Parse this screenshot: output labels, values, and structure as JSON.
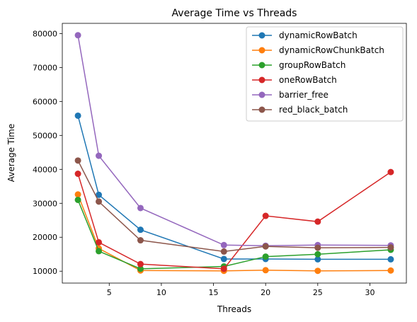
{
  "chart_data": {
    "type": "line",
    "title": "Average Time vs Threads",
    "xlabel": "Threads",
    "ylabel": "Average Time",
    "xlim": [
      0.5,
      33.5
    ],
    "ylim": [
      6500,
      83000
    ],
    "xticks": [
      5,
      10,
      15,
      20,
      25,
      30
    ],
    "yticks": [
      10000,
      20000,
      30000,
      40000,
      50000,
      60000,
      70000,
      80000
    ],
    "grid": false,
    "legend_position": "top-right",
    "x": [
      2,
      4,
      8,
      16,
      20,
      25,
      32
    ],
    "series": [
      {
        "name": "dynamicRowBatch",
        "color": "#1f77b4",
        "values": [
          55800,
          32500,
          22200,
          13600,
          13600,
          13500,
          13500
        ]
      },
      {
        "name": "dynamicRowChunkBatch",
        "color": "#ff7f0e",
        "values": [
          32600,
          16700,
          10200,
          10100,
          10300,
          10100,
          10200
        ]
      },
      {
        "name": "groupRowBatch",
        "color": "#2ca02c",
        "values": [
          31000,
          15900,
          10700,
          11400,
          14300,
          15000,
          16300
        ]
      },
      {
        "name": "oneRowBatch",
        "color": "#d62728",
        "values": [
          38700,
          18500,
          12100,
          10700,
          26300,
          24600,
          39200
        ]
      },
      {
        "name": "barrier_free",
        "color": "#9467bd",
        "values": [
          79500,
          44000,
          28600,
          17700,
          17500,
          17700,
          17600
        ]
      },
      {
        "name": "red_black_batch",
        "color": "#8c564b",
        "values": [
          42600,
          30500,
          19100,
          15800,
          17300,
          16900,
          17000
        ]
      }
    ]
  }
}
